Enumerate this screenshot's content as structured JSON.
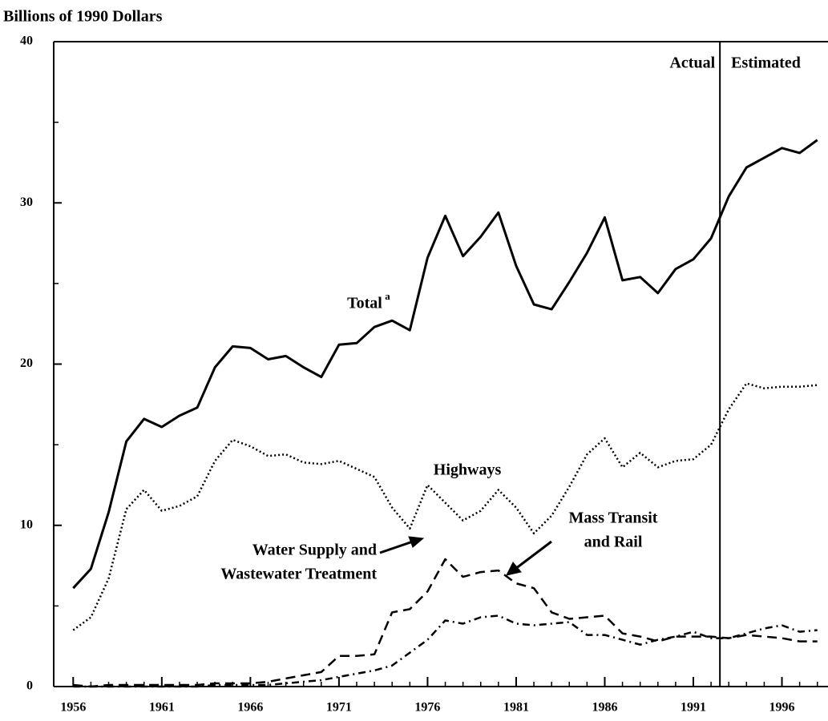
{
  "chart_data": {
    "type": "line",
    "y_axis_title": "Billions of 1990 Dollars",
    "xlim": [
      1954.9,
      1998.6
    ],
    "ylim": [
      0,
      40
    ],
    "xticks": [
      1956,
      1961,
      1966,
      1971,
      1976,
      1981,
      1986,
      1991,
      1996
    ],
    "xminor": [
      1956,
      1957,
      1958,
      1959,
      1960,
      1961,
      1962,
      1963,
      1964,
      1965,
      1966,
      1967,
      1968,
      1969,
      1970,
      1971,
      1972,
      1973,
      1974,
      1975,
      1976,
      1977,
      1978,
      1979,
      1980,
      1981,
      1982,
      1983,
      1984,
      1985,
      1986,
      1987,
      1988,
      1989,
      1990,
      1991,
      1992,
      1993,
      1994,
      1995,
      1996,
      1997,
      1998
    ],
    "yticks": [
      0,
      10,
      20,
      30,
      40
    ],
    "yminor": [
      5,
      15,
      25,
      35
    ],
    "divider": {
      "x": 1992.5,
      "left_label": "Actual",
      "right_label": "Estimated"
    },
    "x": [
      1956,
      1957,
      1958,
      1959,
      1960,
      1961,
      1962,
      1963,
      1964,
      1965,
      1966,
      1967,
      1968,
      1969,
      1970,
      1971,
      1972,
      1973,
      1974,
      1975,
      1976,
      1977,
      1978,
      1979,
      1980,
      1981,
      1982,
      1983,
      1984,
      1985,
      1986,
      1987,
      1988,
      1989,
      1990,
      1991,
      1992,
      1993,
      1994,
      1995,
      1996,
      1997,
      1998
    ],
    "series": [
      {
        "name": [
          "Total"
        ],
        "note": "a",
        "color": "#000",
        "style": "solid",
        "values": [
          6.1,
          7.3,
          10.8,
          15.2,
          16.6,
          16.1,
          16.8,
          17.3,
          19.8,
          21.1,
          21.0,
          20.3,
          20.5,
          19.8,
          19.2,
          21.2,
          21.3,
          22.3,
          22.7,
          22.1,
          26.6,
          29.2,
          26.7,
          27.9,
          29.4,
          26.1,
          23.7,
          23.4,
          25.1,
          26.9,
          29.1,
          25.2,
          25.4,
          24.4,
          25.9,
          26.5,
          27.8,
          30.4,
          32.2,
          32.8,
          33.4,
          33.1,
          33.9
        ]
      },
      {
        "name": [
          "Highways"
        ],
        "color": "#000",
        "style": "dotted",
        "values": [
          3.5,
          4.3,
          6.7,
          11.0,
          12.2,
          10.9,
          11.2,
          11.8,
          14.0,
          15.3,
          14.9,
          14.3,
          14.4,
          13.9,
          13.8,
          14.0,
          13.5,
          13.0,
          11.1,
          9.8,
          12.5,
          11.4,
          10.3,
          10.9,
          12.2,
          11.1,
          9.5,
          10.6,
          12.4,
          14.4,
          15.4,
          13.6,
          14.5,
          13.6,
          14.0,
          14.1,
          15.0,
          17.2,
          18.8,
          18.5,
          18.6,
          18.6,
          18.7
        ]
      },
      {
        "name": [
          "Water Supply and",
          "Wastewater Treatment"
        ],
        "color": "#000",
        "style": "dashed",
        "values": [
          0.1,
          0.0,
          0.1,
          0.1,
          0.1,
          0.1,
          0.1,
          0.1,
          0.2,
          0.2,
          0.2,
          0.3,
          0.5,
          0.7,
          0.9,
          1.9,
          1.9,
          2.0,
          4.6,
          4.8,
          5.9,
          7.9,
          6.8,
          7.1,
          7.2,
          6.4,
          6.1,
          4.6,
          4.2,
          4.3,
          4.4,
          3.3,
          3.1,
          2.8,
          3.1,
          3.1,
          3.1,
          3.0,
          3.2,
          3.1,
          3.0,
          2.8,
          2.8
        ]
      },
      {
        "name": [
          "Mass Transit",
          "and Rail"
        ],
        "color": "#000",
        "style": "dashdot",
        "values": [
          0.0,
          0.0,
          0.0,
          0.0,
          0.0,
          0.0,
          0.0,
          0.0,
          0.1,
          0.1,
          0.1,
          0.1,
          0.2,
          0.3,
          0.4,
          0.6,
          0.8,
          1.0,
          1.3,
          2.1,
          2.9,
          4.1,
          3.9,
          4.3,
          4.4,
          3.9,
          3.8,
          3.9,
          4.0,
          3.2,
          3.2,
          2.9,
          2.6,
          2.9,
          3.1,
          3.4,
          3.0,
          3.0,
          3.3,
          3.6,
          3.8,
          3.4,
          3.5
        ]
      }
    ]
  }
}
